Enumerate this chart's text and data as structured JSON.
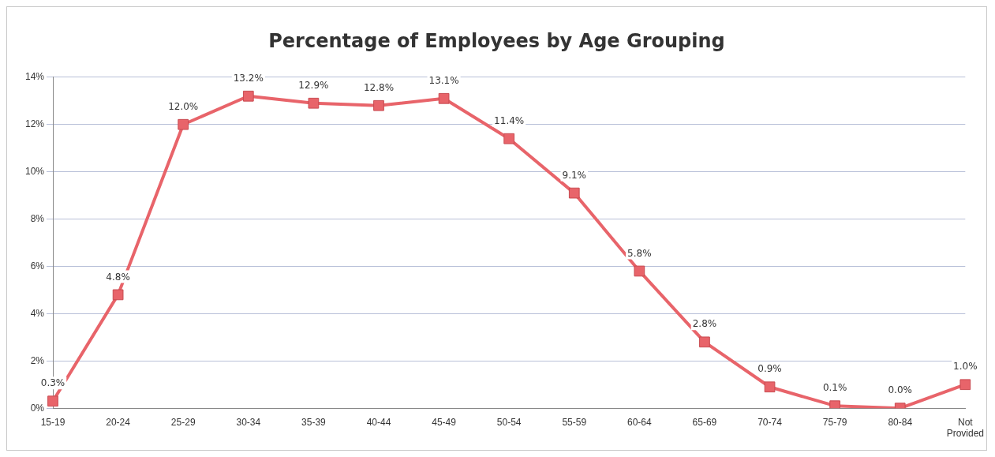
{
  "chart_data": {
    "type": "line",
    "title": "Percentage of Employees by Age Grouping",
    "categories": [
      "15-19",
      "20-24",
      "25-29",
      "30-34",
      "35-39",
      "40-44",
      "45-49",
      "50-54",
      "55-59",
      "60-64",
      "65-69",
      "70-74",
      "75-79",
      "80-84",
      "Not Provided"
    ],
    "values": [
      0.3,
      4.8,
      12.0,
      13.2,
      12.9,
      12.8,
      13.1,
      11.4,
      9.1,
      5.8,
      2.8,
      0.9,
      0.1,
      0.0,
      1.0
    ],
    "value_labels": [
      "0.3%",
      "4.8%",
      "12.0%",
      "13.2%",
      "12.9%",
      "12.8%",
      "13.1%",
      "11.4%",
      "9.1%",
      "5.8%",
      "2.8%",
      "0.9%",
      "0.1%",
      "0.0%",
      "1.0%"
    ],
    "color": "#e8646a",
    "marker": "square",
    "grid": "y",
    "legend": false,
    "ylim": [
      0,
      14
    ],
    "yticks": [
      {
        "value": 0,
        "label": "0%"
      },
      {
        "value": 2,
        "label": "2%"
      },
      {
        "value": 4,
        "label": "4%"
      },
      {
        "value": 6,
        "label": "6%"
      },
      {
        "value": 8,
        "label": "8%"
      },
      {
        "value": 10,
        "label": "10%"
      },
      {
        "value": 12,
        "label": "12%"
      },
      {
        "value": 14,
        "label": "14%"
      }
    ]
  }
}
